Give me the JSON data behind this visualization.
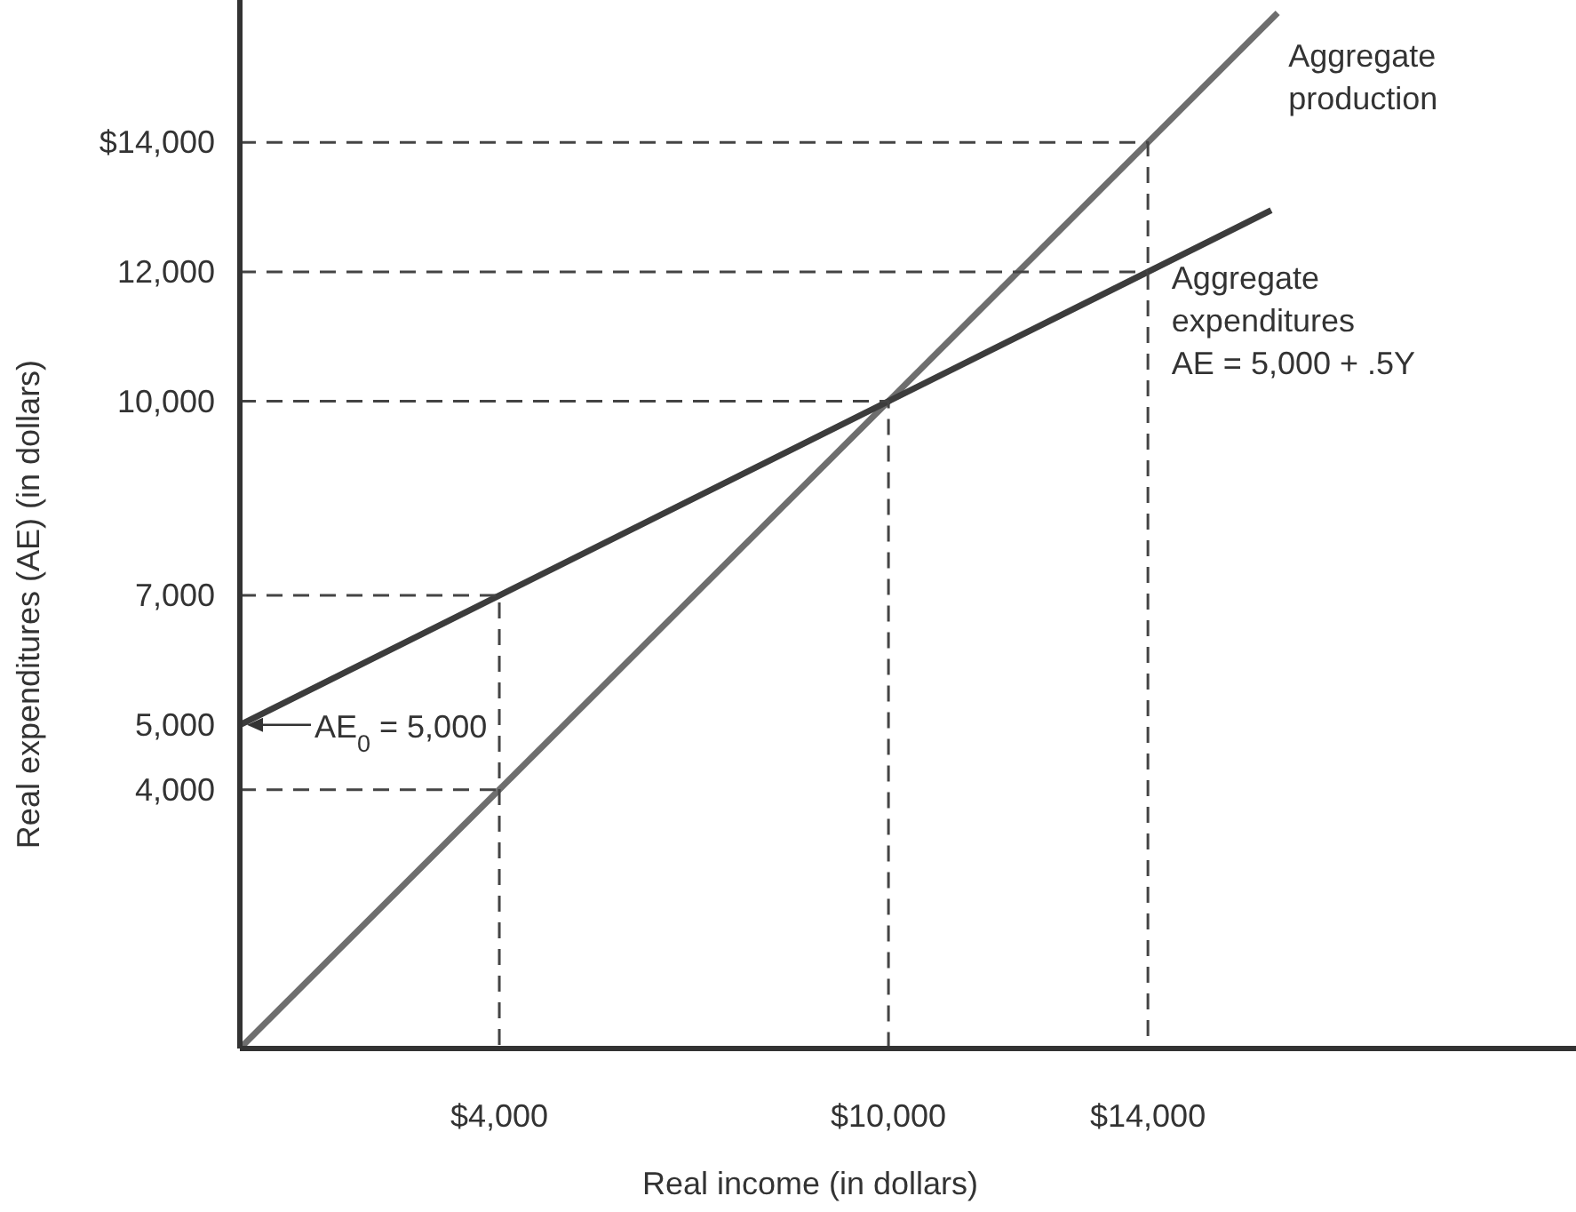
{
  "chart_data": {
    "type": "line",
    "xlabel": "Real income (in dollars)",
    "ylabel": "Real expenditures (AE) (in dollars)",
    "xlim": [
      0,
      20600
    ],
    "ylim": [
      0,
      16200
    ],
    "xticks": [
      {
        "value": 4000,
        "label": "$4,000"
      },
      {
        "value": 10000,
        "label": "$10,000"
      },
      {
        "value": 14000,
        "label": "$14,000"
      }
    ],
    "yticks": [
      {
        "value": 4000,
        "label": "4,000"
      },
      {
        "value": 5000,
        "label": "5,000"
      },
      {
        "value": 7000,
        "label": "7,000"
      },
      {
        "value": 10000,
        "label": "10,000"
      },
      {
        "value": 12000,
        "label": "12,000"
      },
      {
        "value": 14000,
        "label": "$14,000"
      }
    ],
    "grid": false,
    "marker": "none",
    "series": [
      {
        "color": "#6e6e6e",
        "x": [
          0,
          16000
        ],
        "values": [
          0,
          16000
        ],
        "line_style": "solid"
      },
      {
        "color": "#3c3c3c",
        "x": [
          0,
          15900
        ],
        "values": [
          5000,
          12950
        ],
        "line_style": "solid"
      },
      {
        "color": "#444444",
        "x": [
          0,
          4000,
          4000
        ],
        "values": [
          7000,
          7000,
          0
        ],
        "line_style": "dashed"
      },
      {
        "color": "#444444",
        "x": [
          0,
          4000
        ],
        "values": [
          4000,
          4000
        ],
        "line_style": "dashed"
      },
      {
        "color": "#444444",
        "x": [
          0,
          10000,
          10000
        ],
        "values": [
          10000,
          10000,
          0
        ],
        "line_style": "dashed"
      },
      {
        "color": "#444444",
        "x": [
          0,
          14000
        ],
        "values": [
          12000,
          12000
        ],
        "line_style": "dashed"
      },
      {
        "color": "#444444",
        "x": [
          0,
          14000,
          14000
        ],
        "values": [
          14000,
          14000,
          0
        ],
        "line_style": "dashed"
      }
    ],
    "annotations": [
      "Aggregate\nproduction",
      "Aggregate\nexpenditures\nAE = 5,000 + .5Y",
      {
        "text": "AE$_{0}$ = 5,000",
        "x": 0,
        "y": 5000
      }
    ]
  }
}
